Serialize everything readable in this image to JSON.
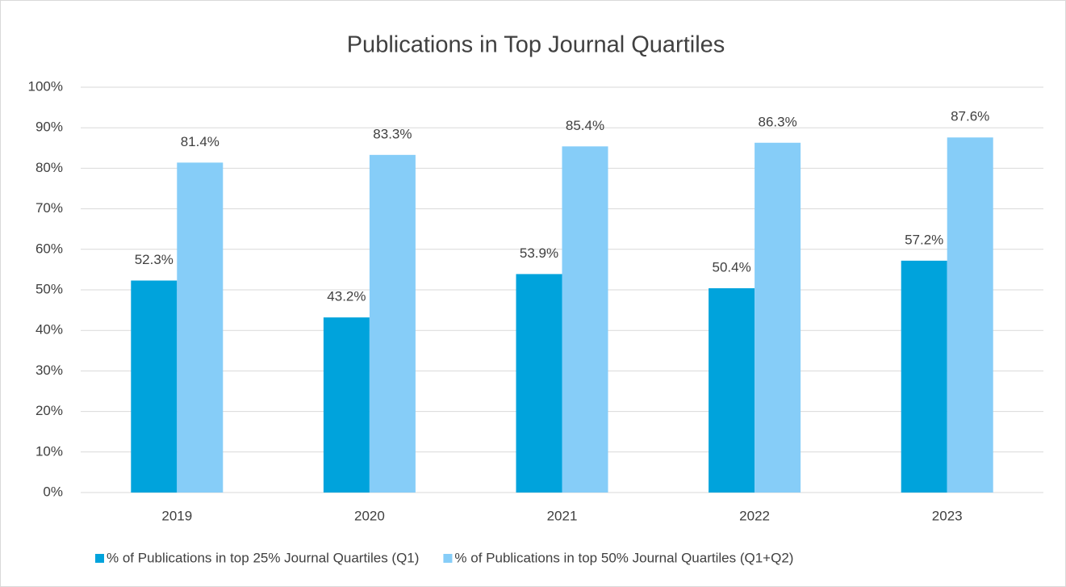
{
  "chart_data": {
    "type": "bar",
    "title": "Publications in Top Journal Quartiles",
    "categories": [
      "2019",
      "2020",
      "2021",
      "2022",
      "2023"
    ],
    "series": [
      {
        "name": "% of Publications in top 25% Journal Quartiles (Q1)",
        "color": "#00a3dc",
        "values": [
          52.3,
          43.2,
          53.9,
          50.4,
          57.2
        ],
        "value_labels": [
          "52.3%",
          "43.2%",
          "53.9%",
          "50.4%",
          "57.2%"
        ]
      },
      {
        "name": "% of Publications in top 50% Journal Quartiles (Q1+Q2)",
        "color": "#86cdf8",
        "values": [
          81.4,
          83.3,
          85.4,
          86.3,
          87.6
        ],
        "value_labels": [
          "81.4%",
          "83.3%",
          "85.4%",
          "86.3%",
          "87.6%"
        ]
      }
    ],
    "ylim": [
      0,
      100
    ],
    "yticks": [
      {
        "value": 0,
        "label": "0%"
      },
      {
        "value": 10,
        "label": "10%"
      },
      {
        "value": 20,
        "label": "20%"
      },
      {
        "value": 30,
        "label": "30%"
      },
      {
        "value": 40,
        "label": "40%"
      },
      {
        "value": 50,
        "label": "50%"
      },
      {
        "value": 60,
        "label": "60%"
      },
      {
        "value": 70,
        "label": "70%"
      },
      {
        "value": 80,
        "label": "80%"
      },
      {
        "value": 90,
        "label": "90%"
      },
      {
        "value": 100,
        "label": "100%"
      }
    ],
    "grid": true,
    "legend": "bottom"
  }
}
